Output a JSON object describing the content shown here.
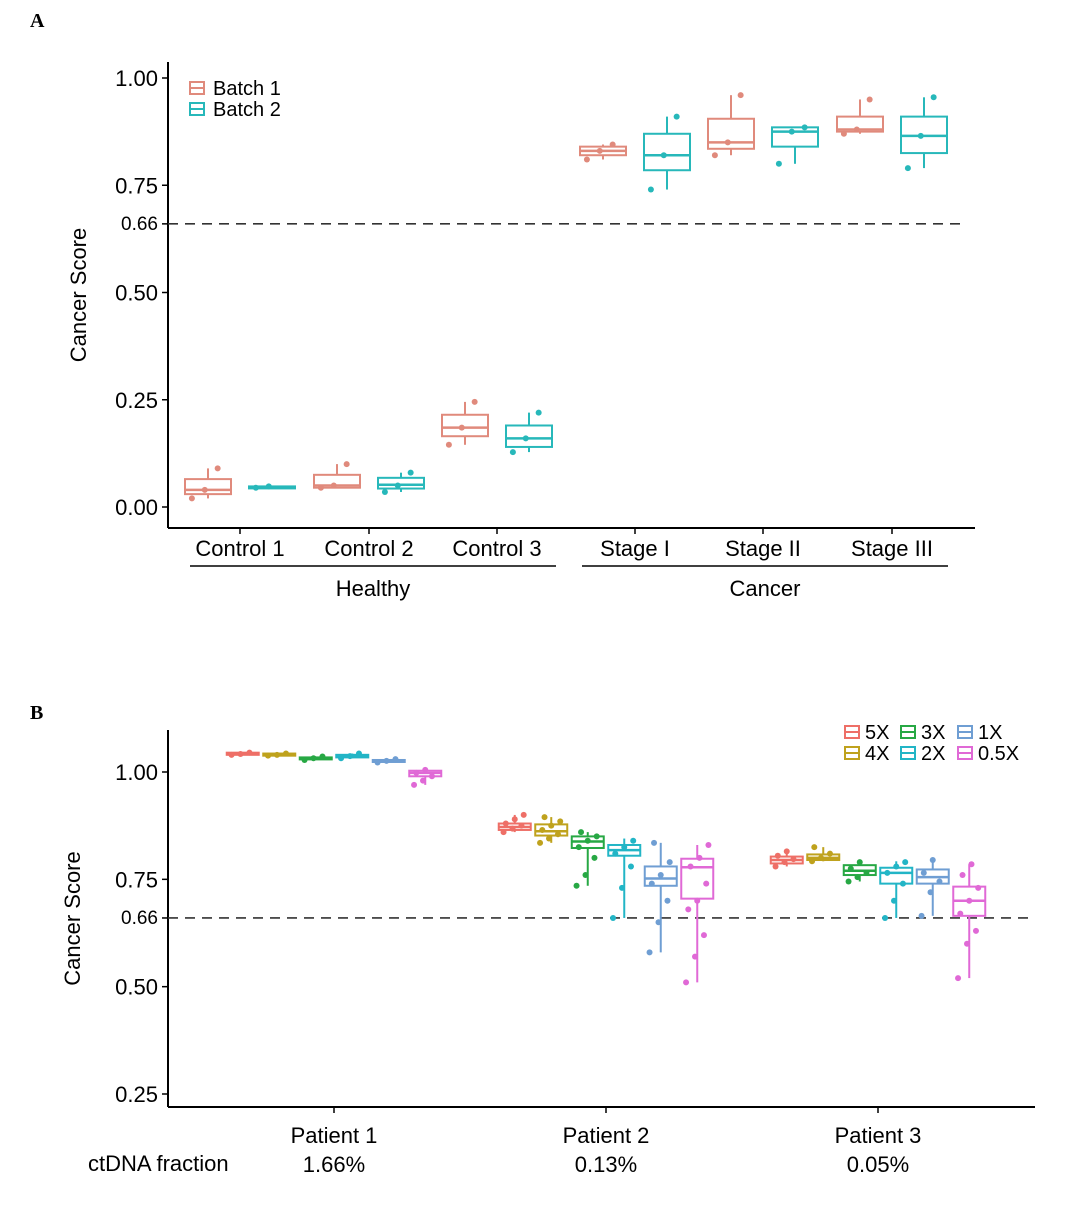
{
  "panel_a_letter": "A",
  "panel_b_letter": "B",
  "colors": {
    "batch1": "#E08A7C",
    "batch2": "#27B8BA",
    "5X": "#EE6F67",
    "4X": "#BFA21D",
    "3X": "#27A844",
    "2X": "#22B5C6",
    "1X": "#6F9ED3",
    "0.5X": "#E069D6"
  },
  "chart_data": [
    {
      "type": "box",
      "panel": "A",
      "ylabel": "Cancer Score",
      "ylim": [
        -0.05,
        1.02
      ],
      "yticks": [
        {
          "value": 0.0,
          "label": "0.00"
        },
        {
          "value": 0.25,
          "label": "0.25"
        },
        {
          "value": 0.5,
          "label": "0.50"
        },
        {
          "value": 0.66,
          "label": "0.66"
        },
        {
          "value": 0.75,
          "label": "0.75"
        },
        {
          "value": 1.0,
          "label": "1.00"
        }
      ],
      "threshold": 0.66,
      "legend": {
        "position": "top-left",
        "entries": [
          "Batch 1",
          "Batch 2"
        ]
      },
      "categories": [
        "Control 1",
        "Control 2",
        "Control 3",
        "Stage I",
        "Stage II",
        "Stage III"
      ],
      "groups": [
        {
          "label": "Healthy",
          "categories": [
            "Control 1",
            "Control 2",
            "Control 3"
          ]
        },
        {
          "label": "Cancer",
          "categories": [
            "Stage I",
            "Stage II",
            "Stage III"
          ]
        }
      ],
      "series": [
        {
          "name": "Batch 1",
          "boxes": [
            {
              "min": 0.02,
              "q1": 0.03,
              "median": 0.04,
              "q3": 0.065,
              "max": 0.09,
              "points": [
                0.02,
                0.04,
                0.09
              ]
            },
            {
              "min": 0.045,
              "q1": 0.045,
              "median": 0.05,
              "q3": 0.075,
              "max": 0.1,
              "points": [
                0.045,
                0.05,
                0.1
              ]
            },
            {
              "min": 0.145,
              "q1": 0.165,
              "median": 0.185,
              "q3": 0.215,
              "max": 0.245,
              "points": [
                0.145,
                0.185,
                0.245
              ]
            },
            {
              "min": 0.81,
              "q1": 0.82,
              "median": 0.83,
              "q3": 0.84,
              "max": 0.845,
              "points": [
                0.81,
                0.83,
                0.845
              ]
            },
            {
              "min": 0.82,
              "q1": 0.835,
              "median": 0.85,
              "q3": 0.905,
              "max": 0.96,
              "points": [
                0.82,
                0.85,
                0.96
              ]
            },
            {
              "min": 0.87,
              "q1": 0.875,
              "median": 0.88,
              "q3": 0.91,
              "max": 0.95,
              "points": [
                0.87,
                0.88,
                0.95
              ]
            }
          ]
        },
        {
          "name": "Batch 2",
          "boxes": [
            {
              "min": 0.045,
              "q1": 0.045,
              "median": 0.045,
              "q3": 0.048,
              "max": 0.048,
              "points": [
                0.045,
                0.048
              ]
            },
            {
              "min": 0.035,
              "q1": 0.043,
              "median": 0.052,
              "q3": 0.068,
              "max": 0.08,
              "points": [
                0.035,
                0.05,
                0.08
              ]
            },
            {
              "min": 0.128,
              "q1": 0.14,
              "median": 0.16,
              "q3": 0.19,
              "max": 0.22,
              "points": [
                0.128,
                0.16,
                0.22
              ]
            },
            {
              "min": 0.74,
              "q1": 0.785,
              "median": 0.82,
              "q3": 0.87,
              "max": 0.91,
              "points": [
                0.74,
                0.82,
                0.91
              ]
            },
            {
              "min": 0.8,
              "q1": 0.84,
              "median": 0.875,
              "q3": 0.885,
              "max": 0.885,
              "points": [
                0.8,
                0.875,
                0.885
              ]
            },
            {
              "min": 0.79,
              "q1": 0.825,
              "median": 0.865,
              "q3": 0.91,
              "max": 0.955,
              "points": [
                0.79,
                0.865,
                0.955
              ]
            }
          ]
        }
      ]
    },
    {
      "type": "box",
      "panel": "B",
      "ylabel": "Cancer Score",
      "ylim": [
        0.22,
        1.08
      ],
      "yticks": [
        {
          "value": 0.25,
          "label": "0.25"
        },
        {
          "value": 0.5,
          "label": "0.50"
        },
        {
          "value": 0.66,
          "label": "0.66"
        },
        {
          "value": 0.75,
          "label": "0.75"
        },
        {
          "value": 1.0,
          "label": "1.00"
        }
      ],
      "threshold": 0.66,
      "legend": {
        "position": "top-right",
        "entries": [
          "5X",
          "3X",
          "1X",
          "4X",
          "2X",
          "0.5X"
        ]
      },
      "row_label": "ctDNA fraction",
      "categories": [
        "Patient 1",
        "Patient 2",
        "Patient 3"
      ],
      "fractions": [
        "1.66%",
        "0.13%",
        "0.05%"
      ],
      "series": [
        {
          "name": "5X",
          "boxes": [
            {
              "min": 1.04,
              "q1": 1.04,
              "median": 1.042,
              "q3": 1.045,
              "max": 1.046,
              "points": [
                1.04,
                1.042,
                1.045
              ]
            },
            {
              "min": 0.86,
              "q1": 0.865,
              "median": 0.872,
              "q3": 0.88,
              "max": 0.9,
              "points": [
                0.86,
                0.868,
                0.875,
                0.88,
                0.89,
                0.9
              ]
            },
            {
              "min": 0.78,
              "q1": 0.787,
              "median": 0.795,
              "q3": 0.803,
              "max": 0.815,
              "points": [
                0.78,
                0.79,
                0.797,
                0.805,
                0.815
              ]
            }
          ]
        },
        {
          "name": "4X",
          "boxes": [
            {
              "min": 1.038,
              "q1": 1.038,
              "median": 1.04,
              "q3": 1.043,
              "max": 1.044,
              "points": [
                1.038,
                1.04,
                1.043
              ]
            },
            {
              "min": 0.835,
              "q1": 0.852,
              "median": 0.862,
              "q3": 0.878,
              "max": 0.895,
              "points": [
                0.835,
                0.845,
                0.855,
                0.865,
                0.875,
                0.885,
                0.895
              ]
            },
            {
              "min": 0.792,
              "q1": 0.795,
              "median": 0.8,
              "q3": 0.808,
              "max": 0.825,
              "points": [
                0.792,
                0.8,
                0.81,
                0.825
              ]
            }
          ]
        },
        {
          "name": "3X",
          "boxes": [
            {
              "min": 1.028,
              "q1": 1.03,
              "median": 1.032,
              "q3": 1.034,
              "max": 1.036,
              "points": [
                1.028,
                1.032,
                1.036
              ]
            },
            {
              "min": 0.735,
              "q1": 0.823,
              "median": 0.838,
              "q3": 0.85,
              "max": 0.86,
              "points": [
                0.735,
                0.76,
                0.8,
                0.825,
                0.84,
                0.85,
                0.86
              ]
            },
            {
              "min": 0.745,
              "q1": 0.76,
              "median": 0.77,
              "q3": 0.783,
              "max": 0.795,
              "points": [
                0.745,
                0.755,
                0.765,
                0.775,
                0.79
              ]
            }
          ]
        },
        {
          "name": "2X",
          "boxes": [
            {
              "min": 1.032,
              "q1": 1.034,
              "median": 1.037,
              "q3": 1.04,
              "max": 1.043,
              "points": [
                1.032,
                1.037,
                1.043
              ]
            },
            {
              "min": 0.66,
              "q1": 0.805,
              "median": 0.818,
              "q3": 0.83,
              "max": 0.845,
              "points": [
                0.66,
                0.73,
                0.78,
                0.81,
                0.825,
                0.84
              ]
            },
            {
              "min": 0.66,
              "q1": 0.74,
              "median": 0.765,
              "q3": 0.777,
              "max": 0.792,
              "points": [
                0.66,
                0.7,
                0.74,
                0.765,
                0.78,
                0.79
              ]
            }
          ]
        },
        {
          "name": "1X",
          "boxes": [
            {
              "min": 1.022,
              "q1": 1.024,
              "median": 1.026,
              "q3": 1.028,
              "max": 1.03,
              "points": [
                1.022,
                1.026,
                1.03
              ]
            },
            {
              "min": 0.58,
              "q1": 0.735,
              "median": 0.752,
              "q3": 0.78,
              "max": 0.835,
              "points": [
                0.58,
                0.65,
                0.7,
                0.74,
                0.76,
                0.79,
                0.835
              ]
            },
            {
              "min": 0.665,
              "q1": 0.74,
              "median": 0.755,
              "q3": 0.773,
              "max": 0.795,
              "points": [
                0.665,
                0.72,
                0.745,
                0.765,
                0.795
              ]
            }
          ]
        },
        {
          "name": "0.5X",
          "boxes": [
            {
              "min": 0.97,
              "q1": 0.99,
              "median": 0.998,
              "q3": 1.003,
              "max": 1.006,
              "points": [
                0.97,
                0.98,
                0.99,
                0.998,
                1.005
              ]
            },
            {
              "min": 0.51,
              "q1": 0.705,
              "median": 0.778,
              "q3": 0.798,
              "max": 0.83,
              "points": [
                0.51,
                0.57,
                0.62,
                0.68,
                0.7,
                0.74,
                0.78,
                0.8,
                0.83
              ]
            },
            {
              "min": 0.52,
              "q1": 0.665,
              "median": 0.7,
              "q3": 0.733,
              "max": 0.785,
              "points": [
                0.52,
                0.6,
                0.63,
                0.67,
                0.7,
                0.73,
                0.76,
                0.785
              ]
            }
          ]
        }
      ]
    }
  ]
}
